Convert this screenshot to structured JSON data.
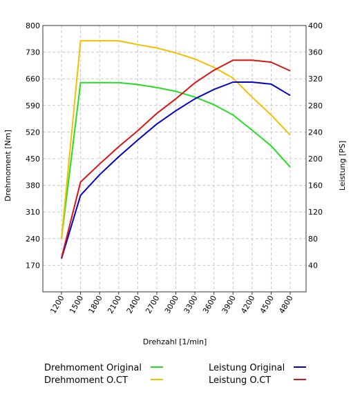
{
  "chart_data": {
    "type": "line",
    "title": "",
    "xlabel": "Drehzahl [1/min]",
    "ylabel_left": "Drehmoment [Nm]",
    "ylabel_right": "Leistung [PS]",
    "x": [
      1200,
      1500,
      1800,
      2100,
      2400,
      2700,
      3000,
      3300,
      3600,
      3900,
      4200,
      4500,
      4800
    ],
    "x_tick_labels": [
      "1200",
      "1500",
      "1800",
      "2100",
      "2400",
      "2700",
      "3000",
      "3300",
      "3600",
      "3900",
      "4200",
      "4500",
      "4800"
    ],
    "y_left_ticks": [
      "170",
      "240",
      "310",
      "380",
      "450",
      "520",
      "590",
      "660",
      "730",
      "800"
    ],
    "y_right_ticks": [
      "40",
      "80",
      "120",
      "160",
      "200",
      "240",
      "280",
      "320",
      "360",
      "400"
    ],
    "y_left_range": [
      100,
      800
    ],
    "y_right_range": [
      0,
      400
    ],
    "grid": true,
    "legend_position": "bottom",
    "series": [
      {
        "name": "Drehmoment Original",
        "axis": "left",
        "color": "#22dd22",
        "values": [
          240,
          650,
          650,
          650,
          645,
          637,
          627,
          612,
          592,
          565,
          525,
          484,
          428
        ]
      },
      {
        "name": "Drehmoment O.CT",
        "axis": "left",
        "color": "#f2c000",
        "values": [
          240,
          760,
          760,
          760,
          750,
          741,
          728,
          712,
          690,
          662,
          612,
          565,
          512
        ]
      },
      {
        "name": "Leistung Original",
        "axis": "right",
        "color": "#0000c8",
        "values": [
          50,
          145,
          176,
          203,
          228,
          252,
          272,
          290,
          304,
          315,
          315,
          312,
          295
        ]
      },
      {
        "name": "Leistung O.CT",
        "axis": "right",
        "color": "#dd1111",
        "values": [
          51,
          165,
          192,
          218,
          242,
          268,
          290,
          314,
          333,
          348,
          348,
          345,
          332
        ]
      }
    ]
  }
}
